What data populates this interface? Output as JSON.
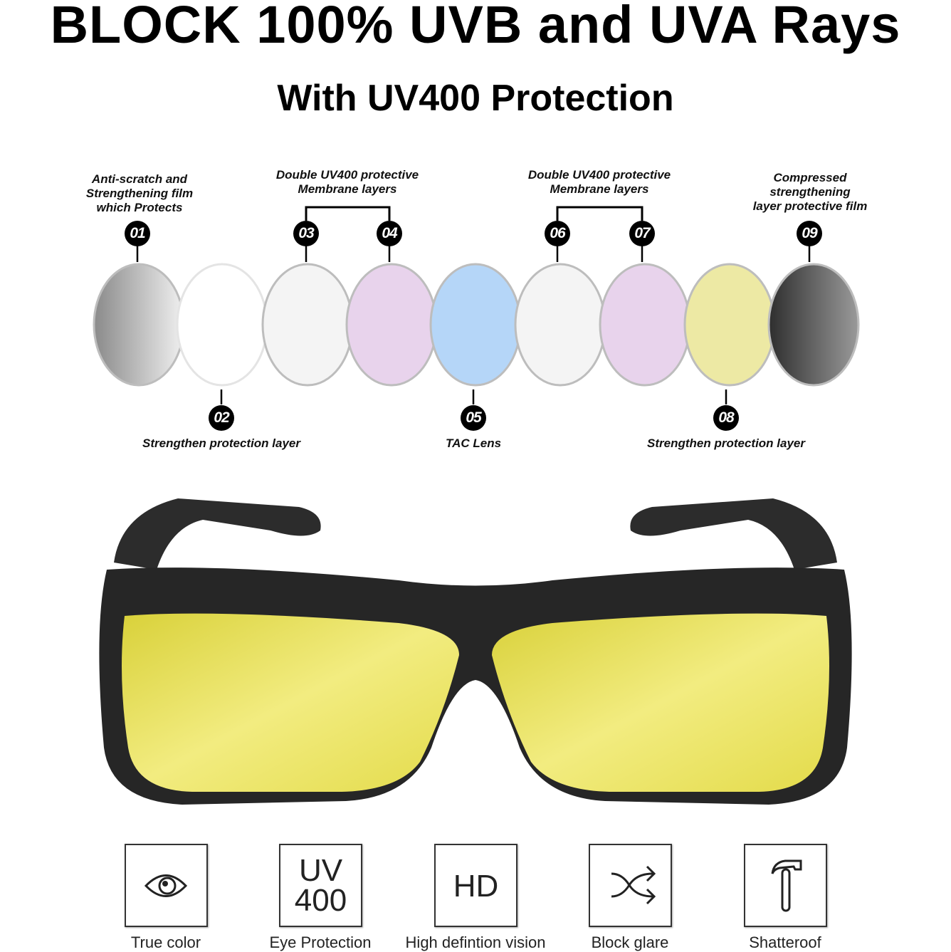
{
  "header": {
    "title": "BLOCK 100% UVB and UVA Rays",
    "subtitle": "With UV400 Protection"
  },
  "layers": [
    {
      "num": "01",
      "color": "#a9a9a9"
    },
    {
      "num": "02",
      "color": "#ffffff"
    },
    {
      "num": "03",
      "color": "#f4f4f4"
    },
    {
      "num": "04",
      "color": "#e8d3ec"
    },
    {
      "num": "05",
      "color": "#b5d6f8"
    },
    {
      "num": "06",
      "color": "#f4f4f4"
    },
    {
      "num": "07",
      "color": "#e8d3ec"
    },
    {
      "num": "08",
      "color": "#ede9a4"
    },
    {
      "num": "09",
      "color": "#5c5c5c"
    }
  ],
  "labels": {
    "l01": "Anti-scratch and\nStrengthening film\nwhich Protects",
    "l0304": "Double UV400 protective\nMembrane layers",
    "l0607": "Double UV400 protective\nMembrane layers",
    "l09": "Compressed\nstrengthening\nlayer protective film",
    "l02": "Strengthen protection layer",
    "l05": "TAC Lens",
    "l08": "Strengthen protection layer"
  },
  "product": {
    "lens_color": "#f0ea6c",
    "frame_color": "#2a2a2a"
  },
  "features": [
    {
      "icon": "eye-icon",
      "label": "True color"
    },
    {
      "icon": "uv400-icon",
      "text1": "UV",
      "text2": "400",
      "label": "Eye Protection"
    },
    {
      "icon": "hd-icon",
      "text": "HD",
      "label": "High defintion vision"
    },
    {
      "icon": "shuffle-arrows-icon",
      "label": "Block glare"
    },
    {
      "icon": "hammer-icon",
      "label": "Shatteroof"
    }
  ]
}
